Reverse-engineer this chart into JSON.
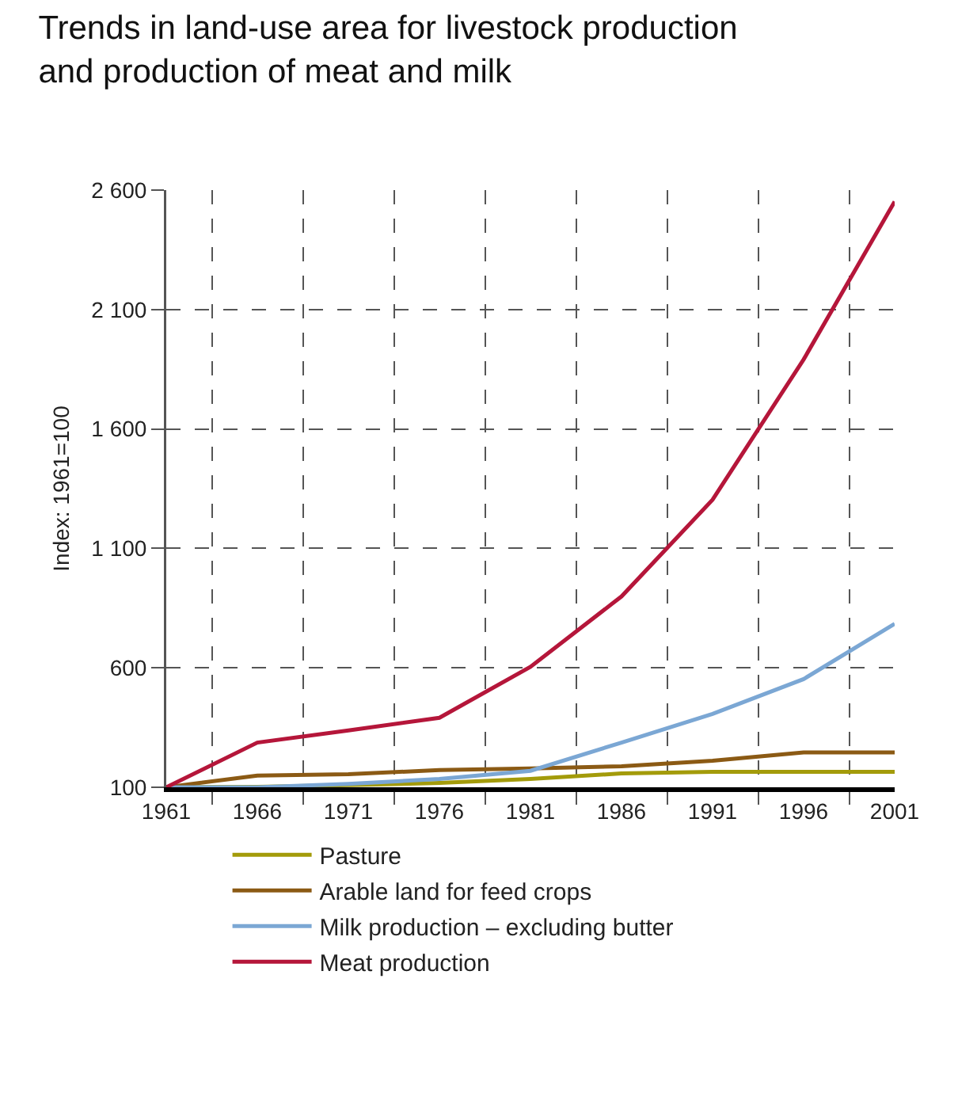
{
  "chart_data": {
    "type": "line",
    "title": "Trends in land-use area for livestock production and production of meat and milk",
    "ylabel": "Index: 1961=100",
    "categories": [
      "1961",
      "1966",
      "1971",
      "1976",
      "1981",
      "1986",
      "1991",
      "1996",
      "2001"
    ],
    "series": [
      {
        "name": "Pasture",
        "color": "#a39b0a",
        "values": [
          100,
          102,
          109,
          118,
          135,
          158,
          165,
          165,
          165
        ]
      },
      {
        "name": "Arable land for feed crops",
        "color": "#8b5a14",
        "values": [
          100,
          149,
          155,
          172,
          179,
          188,
          211,
          246,
          246
        ]
      },
      {
        "name": "Milk production – excluding butter",
        "color": "#7ba7d4",
        "values": [
          100,
          100,
          114,
          135,
          169,
          287,
          407,
          553,
          784
        ]
      },
      {
        "name": "Meat production",
        "color": "#b5163a",
        "values": [
          100,
          287,
          338,
          391,
          604,
          899,
          1304,
          1891,
          2552
        ]
      }
    ],
    "ylim": [
      100,
      2600
    ],
    "yticks": [
      100,
      600,
      {
        "value": 1100,
        "label": "1 100"
      },
      {
        "value": 1600,
        "label": "1 600"
      },
      {
        "value": 2100,
        "label": "2 100"
      },
      {
        "value": 2600,
        "label": "2 600"
      }
    ],
    "grid": true,
    "legend": "bottom",
    "marker": "none",
    "line_style": "solid"
  }
}
